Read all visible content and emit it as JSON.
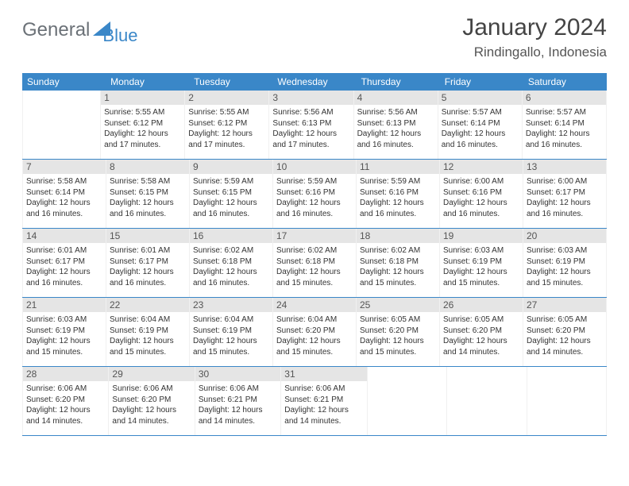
{
  "logo": {
    "text1": "General",
    "text2": "Blue"
  },
  "title": "January 2024",
  "location": "Rindingallo, Indonesia",
  "colors": {
    "header_bg": "#3a87c8",
    "header_text": "#ffffff",
    "daynum_bg": "#e5e5e5",
    "row_border": "#3a87c8",
    "page_bg": "#ffffff"
  },
  "weekdays": [
    "Sunday",
    "Monday",
    "Tuesday",
    "Wednesday",
    "Thursday",
    "Friday",
    "Saturday"
  ],
  "start_offset": 1,
  "days": [
    {
      "n": 1,
      "sunrise": "5:55 AM",
      "sunset": "6:12 PM",
      "daylight": "12 hours and 17 minutes."
    },
    {
      "n": 2,
      "sunrise": "5:55 AM",
      "sunset": "6:12 PM",
      "daylight": "12 hours and 17 minutes."
    },
    {
      "n": 3,
      "sunrise": "5:56 AM",
      "sunset": "6:13 PM",
      "daylight": "12 hours and 17 minutes."
    },
    {
      "n": 4,
      "sunrise": "5:56 AM",
      "sunset": "6:13 PM",
      "daylight": "12 hours and 16 minutes."
    },
    {
      "n": 5,
      "sunrise": "5:57 AM",
      "sunset": "6:14 PM",
      "daylight": "12 hours and 16 minutes."
    },
    {
      "n": 6,
      "sunrise": "5:57 AM",
      "sunset": "6:14 PM",
      "daylight": "12 hours and 16 minutes."
    },
    {
      "n": 7,
      "sunrise": "5:58 AM",
      "sunset": "6:14 PM",
      "daylight": "12 hours and 16 minutes."
    },
    {
      "n": 8,
      "sunrise": "5:58 AM",
      "sunset": "6:15 PM",
      "daylight": "12 hours and 16 minutes."
    },
    {
      "n": 9,
      "sunrise": "5:59 AM",
      "sunset": "6:15 PM",
      "daylight": "12 hours and 16 minutes."
    },
    {
      "n": 10,
      "sunrise": "5:59 AM",
      "sunset": "6:16 PM",
      "daylight": "12 hours and 16 minutes."
    },
    {
      "n": 11,
      "sunrise": "5:59 AM",
      "sunset": "6:16 PM",
      "daylight": "12 hours and 16 minutes."
    },
    {
      "n": 12,
      "sunrise": "6:00 AM",
      "sunset": "6:16 PM",
      "daylight": "12 hours and 16 minutes."
    },
    {
      "n": 13,
      "sunrise": "6:00 AM",
      "sunset": "6:17 PM",
      "daylight": "12 hours and 16 minutes."
    },
    {
      "n": 14,
      "sunrise": "6:01 AM",
      "sunset": "6:17 PM",
      "daylight": "12 hours and 16 minutes."
    },
    {
      "n": 15,
      "sunrise": "6:01 AM",
      "sunset": "6:17 PM",
      "daylight": "12 hours and 16 minutes."
    },
    {
      "n": 16,
      "sunrise": "6:02 AM",
      "sunset": "6:18 PM",
      "daylight": "12 hours and 16 minutes."
    },
    {
      "n": 17,
      "sunrise": "6:02 AM",
      "sunset": "6:18 PM",
      "daylight": "12 hours and 15 minutes."
    },
    {
      "n": 18,
      "sunrise": "6:02 AM",
      "sunset": "6:18 PM",
      "daylight": "12 hours and 15 minutes."
    },
    {
      "n": 19,
      "sunrise": "6:03 AM",
      "sunset": "6:19 PM",
      "daylight": "12 hours and 15 minutes."
    },
    {
      "n": 20,
      "sunrise": "6:03 AM",
      "sunset": "6:19 PM",
      "daylight": "12 hours and 15 minutes."
    },
    {
      "n": 21,
      "sunrise": "6:03 AM",
      "sunset": "6:19 PM",
      "daylight": "12 hours and 15 minutes."
    },
    {
      "n": 22,
      "sunrise": "6:04 AM",
      "sunset": "6:19 PM",
      "daylight": "12 hours and 15 minutes."
    },
    {
      "n": 23,
      "sunrise": "6:04 AM",
      "sunset": "6:19 PM",
      "daylight": "12 hours and 15 minutes."
    },
    {
      "n": 24,
      "sunrise": "6:04 AM",
      "sunset": "6:20 PM",
      "daylight": "12 hours and 15 minutes."
    },
    {
      "n": 25,
      "sunrise": "6:05 AM",
      "sunset": "6:20 PM",
      "daylight": "12 hours and 15 minutes."
    },
    {
      "n": 26,
      "sunrise": "6:05 AM",
      "sunset": "6:20 PM",
      "daylight": "12 hours and 14 minutes."
    },
    {
      "n": 27,
      "sunrise": "6:05 AM",
      "sunset": "6:20 PM",
      "daylight": "12 hours and 14 minutes."
    },
    {
      "n": 28,
      "sunrise": "6:06 AM",
      "sunset": "6:20 PM",
      "daylight": "12 hours and 14 minutes."
    },
    {
      "n": 29,
      "sunrise": "6:06 AM",
      "sunset": "6:20 PM",
      "daylight": "12 hours and 14 minutes."
    },
    {
      "n": 30,
      "sunrise": "6:06 AM",
      "sunset": "6:21 PM",
      "daylight": "12 hours and 14 minutes."
    },
    {
      "n": 31,
      "sunrise": "6:06 AM",
      "sunset": "6:21 PM",
      "daylight": "12 hours and 14 minutes."
    }
  ]
}
